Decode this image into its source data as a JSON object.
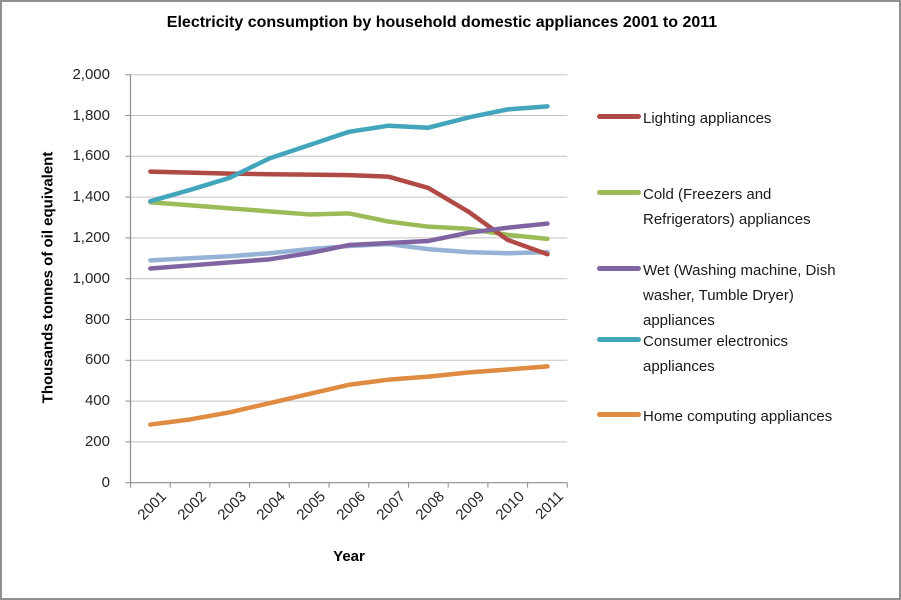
{
  "chart_data": {
    "type": "line",
    "title": "Electricity consumption by household domestic appliances 2001 to 2011",
    "xlabel": "Year",
    "ylabel": "Thousands tonnes of oil equivalent",
    "categories": [
      "2001",
      "2002",
      "2003",
      "2004",
      "2005",
      "2006",
      "2007",
      "2008",
      "2009",
      "2010",
      "2011"
    ],
    "ylim": [
      0,
      2000
    ],
    "ytick_step": 200,
    "ytick_labels_top_down": [
      "2,000",
      "1,800",
      "1,600",
      "1,400",
      "1,200",
      "1,000",
      "800",
      "600",
      "400",
      "200",
      "0"
    ],
    "grid": "horizontal",
    "legend_position": "right",
    "series": [
      {
        "name": "Lighting appliances",
        "color": "#B04A44",
        "in_legend": true,
        "values": [
          1525,
          1520,
          1515,
          1512,
          1510,
          1508,
          1500,
          1445,
          1330,
          1190,
          1120
        ]
      },
      {
        "name": "Cold (Freezers and Refrigerators) appliances",
        "color": "#9BBB59",
        "in_legend": true,
        "values": [
          1375,
          1360,
          1345,
          1330,
          1315,
          1320,
          1280,
          1255,
          1245,
          1215,
          1195
        ]
      },
      {
        "name": "Wet (Washing machine, Dish washer, Tumble Dryer) appliances",
        "color": "#8064A2",
        "in_legend": true,
        "values": [
          1050,
          1065,
          1080,
          1095,
          1125,
          1165,
          1175,
          1185,
          1225,
          1250,
          1270
        ]
      },
      {
        "name": "Consumer electronics appliances",
        "color": "#42A5BC",
        "in_legend": true,
        "values": [
          1380,
          1435,
          1495,
          1590,
          1655,
          1720,
          1750,
          1740,
          1790,
          1830,
          1845
        ]
      },
      {
        "name": "Home computing appliances",
        "color": "#DF8B42",
        "in_legend": true,
        "values": [
          285,
          310,
          345,
          390,
          435,
          480,
          505,
          520,
          540,
          555,
          570
        ]
      },
      {
        "name": "",
        "color": "#95B3D7",
        "in_legend": false,
        "values": [
          1090,
          1100,
          1110,
          1125,
          1145,
          1160,
          1170,
          1145,
          1130,
          1125,
          1130
        ]
      }
    ],
    "colors": {
      "grid": "#C3C3C3",
      "axis": "#8C8C8C",
      "text": "#262626"
    }
  }
}
